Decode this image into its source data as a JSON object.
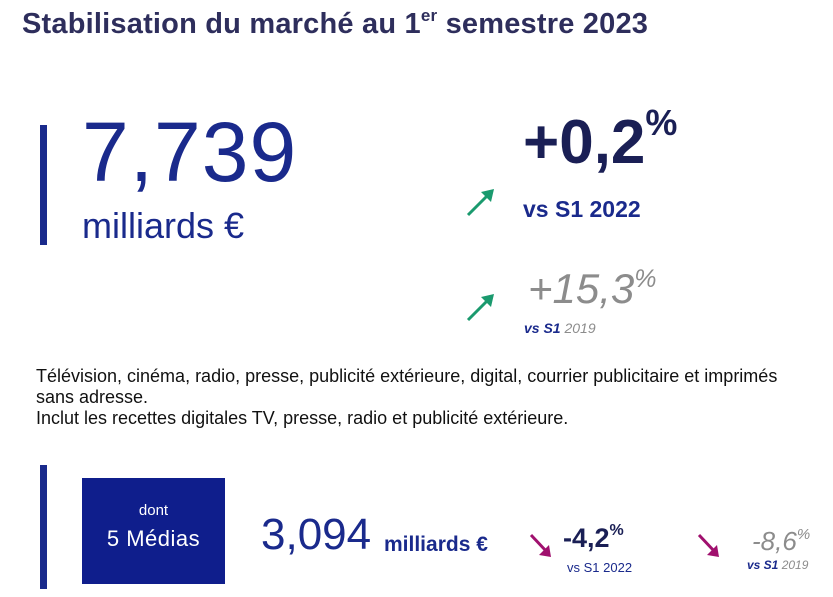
{
  "header": {
    "title_prefix": "Stabilisation du marché au 1",
    "title_sup": "er",
    "title_suffix": " semestre 2023"
  },
  "market": {
    "value": "7,739",
    "unit": "milliards €"
  },
  "change_2022": {
    "value": "+0,2",
    "pct": "%",
    "label": "vs S1 2022"
  },
  "change_2019": {
    "value": "+15,3",
    "pct": "%",
    "label_prefix": "vs S1",
    "label_year": " 2019"
  },
  "description": {
    "line1": "Télévision, cinéma, radio, presse, publicité extérieure, digital, courrier publicitaire et imprimés sans adresse.",
    "line2": "Inclut les recettes digitales TV, presse, radio et publicité extérieure."
  },
  "medias": {
    "dont": "dont",
    "label": "5 Médias",
    "value": "3,094",
    "unit": "milliards €",
    "change_2022": {
      "value": "-4,2",
      "pct": "%",
      "label": "vs S1 2022"
    },
    "change_2019": {
      "value": "-8,6",
      "pct": "%",
      "label_prefix": "vs S1",
      "label_year": " 2019"
    }
  },
  "colors": {
    "navy": "#1a2a8c",
    "up_arrow": "#1a9a6e",
    "down_arrow": "#a0106e",
    "muted": "#8c8c8c"
  },
  "icons": {
    "up": "arrow-up-right-icon",
    "down": "arrow-down-right-icon"
  }
}
